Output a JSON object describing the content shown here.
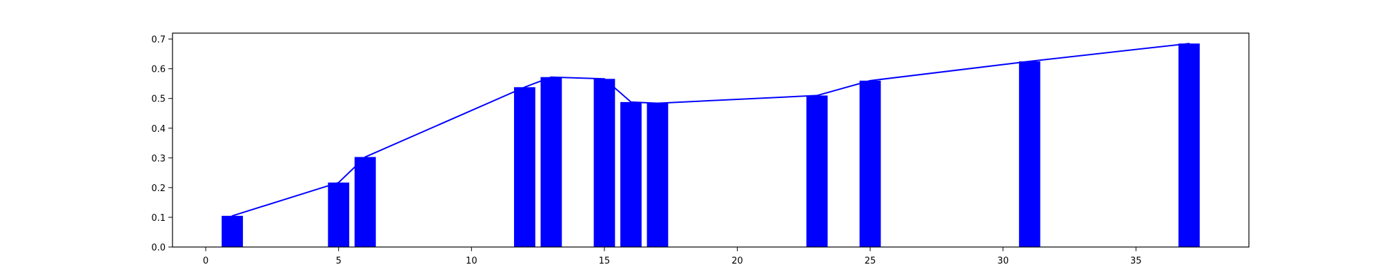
{
  "chart_data": {
    "type": "bar",
    "title": "",
    "xlabel": "",
    "ylabel": "",
    "xlim": [
      -1.25,
      39.25
    ],
    "ylim": [
      0,
      0.72
    ],
    "grid": false,
    "xticks": [
      0,
      5,
      10,
      15,
      20,
      25,
      30,
      35
    ],
    "yticks": [
      0.0,
      0.1,
      0.2,
      0.3,
      0.4,
      0.5,
      0.6,
      0.7
    ],
    "xtick_labels": [
      "0",
      "5",
      "10",
      "15",
      "20",
      "25",
      "30",
      "35"
    ],
    "ytick_labels": [
      "0.0",
      "0.1",
      "0.2",
      "0.3",
      "0.4",
      "0.5",
      "0.6",
      "0.7"
    ],
    "x": [
      1,
      5,
      6,
      12,
      13,
      15,
      16,
      17,
      23,
      25,
      31,
      37
    ],
    "values": [
      0.105,
      0.217,
      0.303,
      0.538,
      0.572,
      0.566,
      0.488,
      0.484,
      0.51,
      0.56,
      0.625,
      0.685
    ],
    "bar_width": 0.8,
    "bar_color": "#0000ff",
    "line_color": "#0000ff",
    "line_points": [
      [
        1,
        0.105
      ],
      [
        5,
        0.217
      ],
      [
        6,
        0.303
      ],
      [
        12,
        0.538
      ],
      [
        13,
        0.572
      ],
      [
        15,
        0.566
      ],
      [
        16,
        0.488
      ],
      [
        17,
        0.484
      ],
      [
        23,
        0.51
      ],
      [
        25,
        0.56
      ],
      [
        31,
        0.625
      ],
      [
        37,
        0.685
      ]
    ]
  }
}
